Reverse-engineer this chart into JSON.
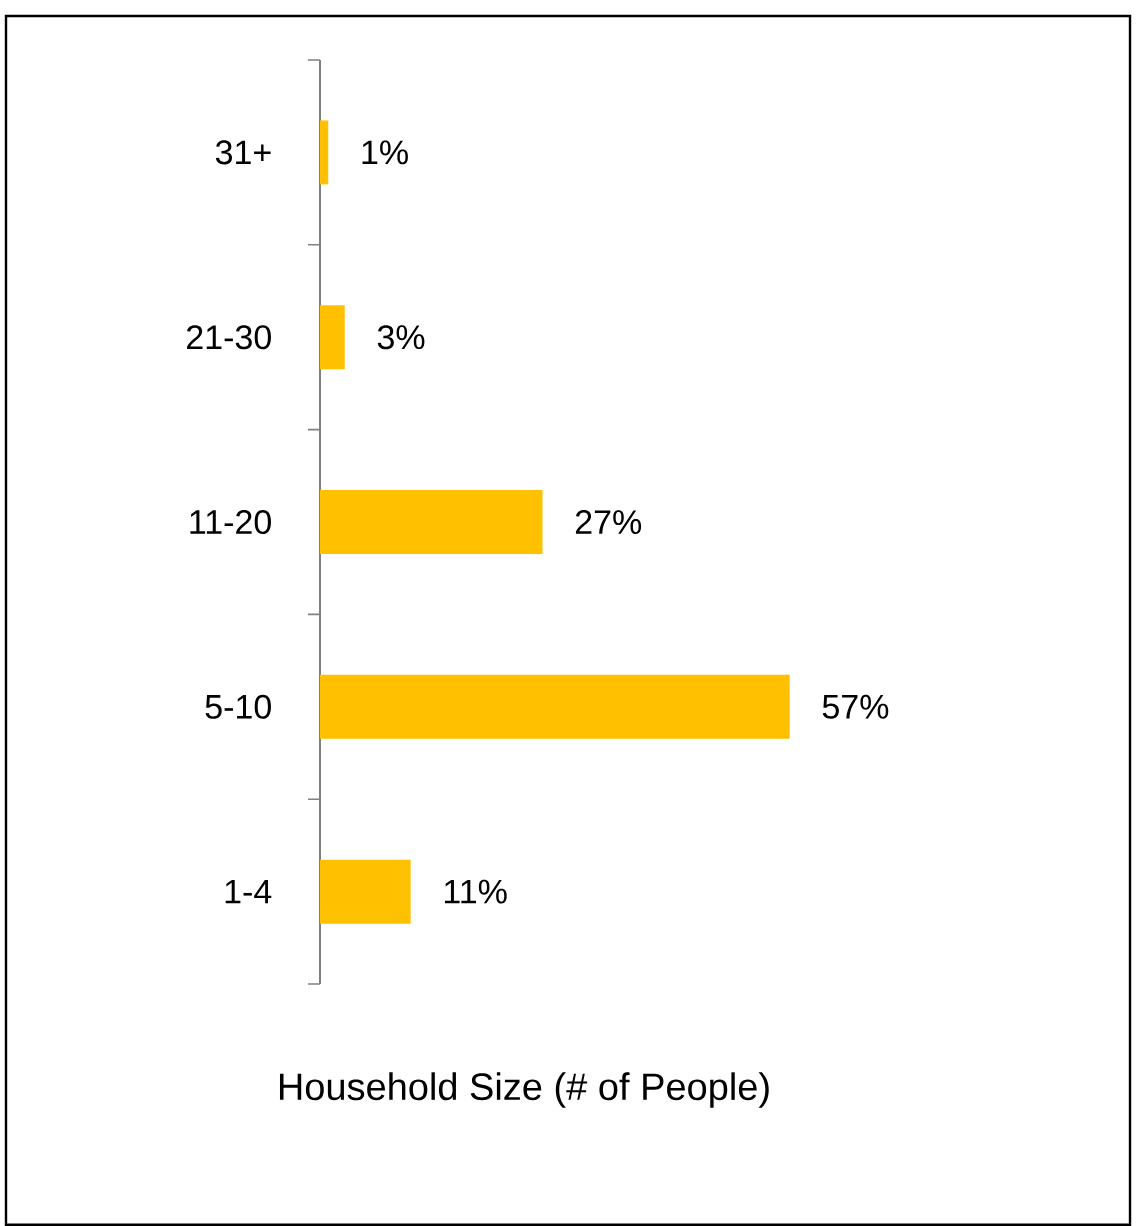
{
  "chart_data": {
    "type": "bar",
    "orientation": "horizontal",
    "xlabel": "Household Size (# of People)",
    "categories": [
      "31+",
      "21-30",
      "11-20",
      "5-10",
      "1-4"
    ],
    "values": [
      1,
      3,
      27,
      57,
      11
    ],
    "color": "#ffc000",
    "value_labels": [
      "1%",
      "3%",
      "27%",
      "57%",
      "11%"
    ]
  }
}
